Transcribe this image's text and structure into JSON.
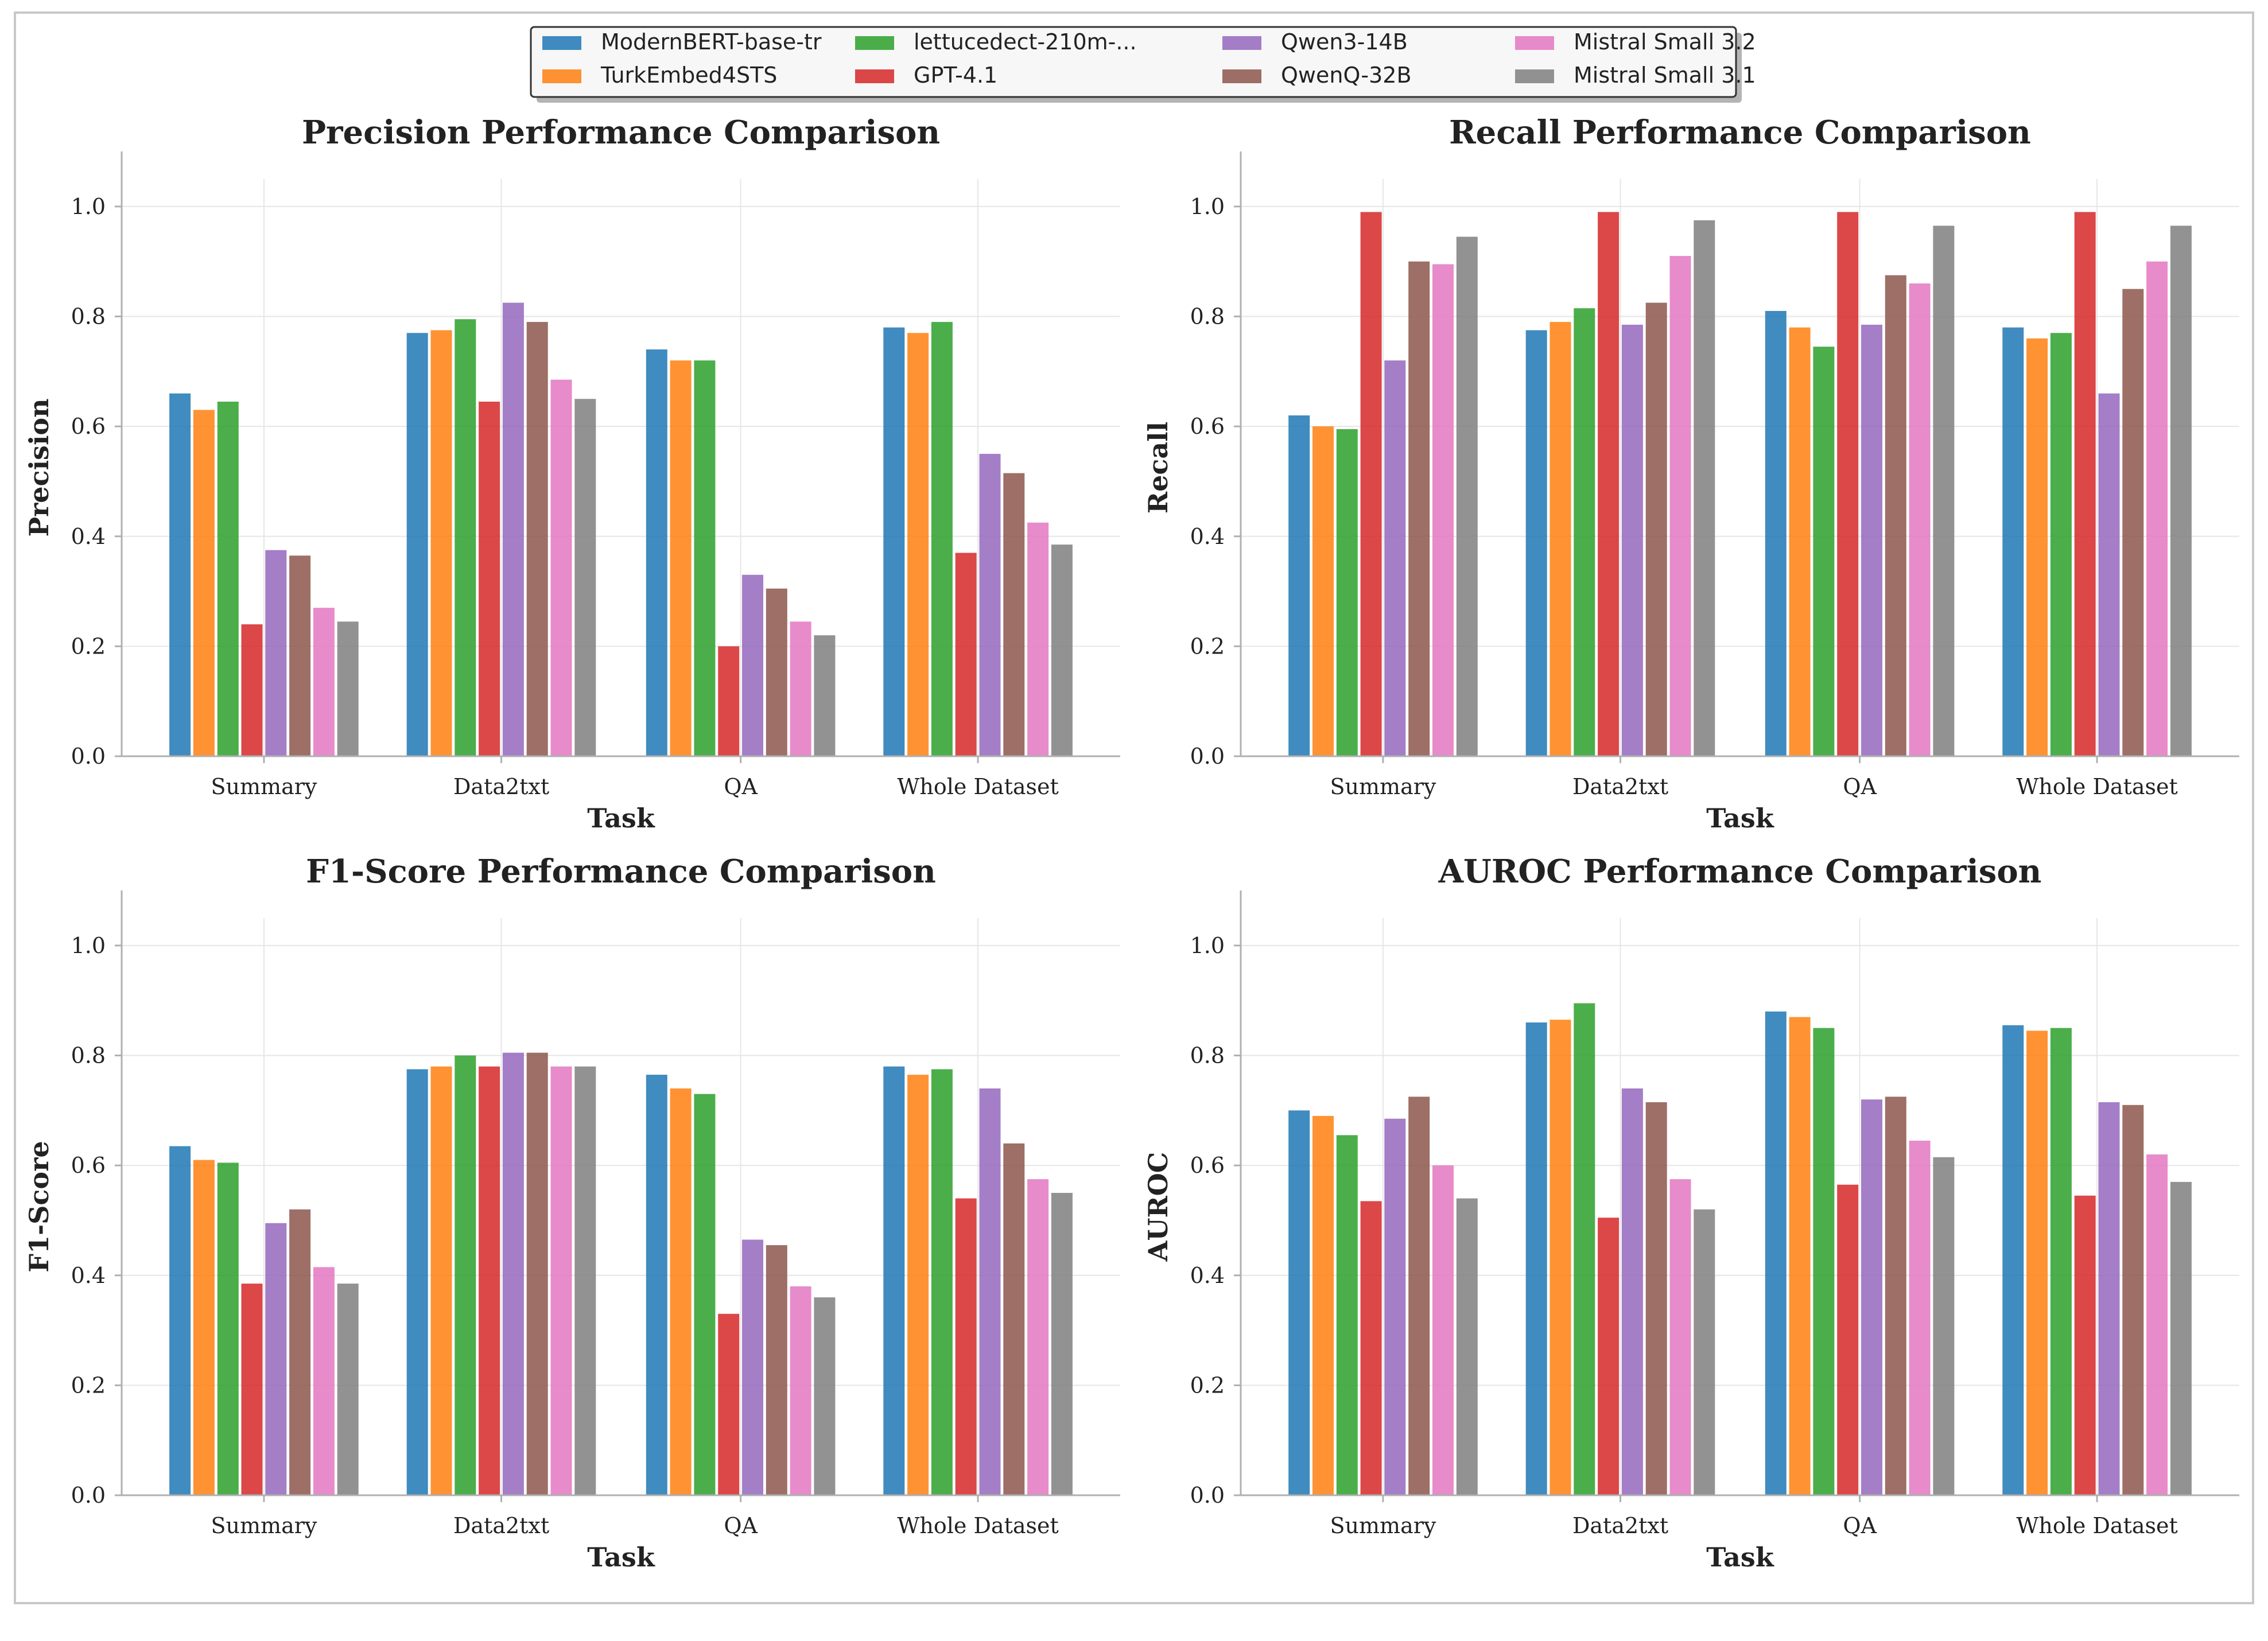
{
  "legend": {
    "entries": [
      {
        "label": "ModernBERT-base-tr",
        "color": "#1f77b4"
      },
      {
        "label": "TurkEmbed4STS",
        "color": "#ff7f0e"
      },
      {
        "label": "lettucedect-210m-...",
        "color": "#2ca02c"
      },
      {
        "label": "GPT-4.1",
        "color": "#d62728"
      },
      {
        "label": "Qwen3-14B",
        "color": "#9467bd"
      },
      {
        "label": "QwenQ-32B",
        "color": "#8c564b"
      },
      {
        "label": "Mistral Small 3.2",
        "color": "#e377c2"
      },
      {
        "label": "Mistral Small 3.1",
        "color": "#7f7f7f"
      }
    ]
  },
  "chart_data": [
    {
      "type": "bar",
      "title": "Precision Performance Comparison",
      "xlabel": "Task",
      "ylabel": "Precision",
      "ylim": [
        0,
        1.05
      ],
      "yticks": [
        "0.0",
        "0.2",
        "0.4",
        "0.6",
        "0.8",
        "1.0"
      ],
      "categories": [
        "Summary",
        "Data2txt",
        "QA",
        "Whole Dataset"
      ],
      "series": [
        {
          "name": "ModernBERT-base-tr",
          "values": [
            0.66,
            0.77,
            0.74,
            0.78
          ]
        },
        {
          "name": "TurkEmbed4STS",
          "values": [
            0.63,
            0.775,
            0.72,
            0.77
          ]
        },
        {
          "name": "lettucedect-210m-...",
          "values": [
            0.645,
            0.795,
            0.72,
            0.79
          ]
        },
        {
          "name": "GPT-4.1",
          "values": [
            0.24,
            0.645,
            0.2,
            0.37
          ]
        },
        {
          "name": "Qwen3-14B",
          "values": [
            0.375,
            0.825,
            0.33,
            0.55
          ]
        },
        {
          "name": "QwenQ-32B",
          "values": [
            0.365,
            0.79,
            0.305,
            0.515
          ]
        },
        {
          "name": "Mistral Small 3.2",
          "values": [
            0.27,
            0.685,
            0.245,
            0.425
          ]
        },
        {
          "name": "Mistral Small 3.1",
          "values": [
            0.245,
            0.65,
            0.22,
            0.385
          ]
        }
      ]
    },
    {
      "type": "bar",
      "title": "Recall Performance Comparison",
      "xlabel": "Task",
      "ylabel": "Recall",
      "ylim": [
        0,
        1.05
      ],
      "yticks": [
        "0.0",
        "0.2",
        "0.4",
        "0.6",
        "0.8",
        "1.0"
      ],
      "categories": [
        "Summary",
        "Data2txt",
        "QA",
        "Whole Dataset"
      ],
      "series": [
        {
          "name": "ModernBERT-base-tr",
          "values": [
            0.62,
            0.775,
            0.81,
            0.78
          ]
        },
        {
          "name": "TurkEmbed4STS",
          "values": [
            0.6,
            0.79,
            0.78,
            0.76
          ]
        },
        {
          "name": "lettucedect-210m-...",
          "values": [
            0.595,
            0.815,
            0.745,
            0.77
          ]
        },
        {
          "name": "GPT-4.1",
          "values": [
            0.99,
            0.99,
            0.99,
            0.99
          ]
        },
        {
          "name": "Qwen3-14B",
          "values": [
            0.72,
            0.785,
            0.785,
            0.66
          ]
        },
        {
          "name": "QwenQ-32B",
          "values": [
            0.9,
            0.825,
            0.875,
            0.85
          ]
        },
        {
          "name": "Mistral Small 3.2",
          "values": [
            0.895,
            0.91,
            0.86,
            0.9
          ]
        },
        {
          "name": "Mistral Small 3.1",
          "values": [
            0.945,
            0.975,
            0.965,
            0.965
          ]
        }
      ]
    },
    {
      "type": "bar",
      "title": "F1-Score Performance Comparison",
      "xlabel": "Task",
      "ylabel": "F1-Score",
      "ylim": [
        0,
        1.05
      ],
      "yticks": [
        "0.0",
        "0.2",
        "0.4",
        "0.6",
        "0.8",
        "1.0"
      ],
      "categories": [
        "Summary",
        "Data2txt",
        "QA",
        "Whole Dataset"
      ],
      "series": [
        {
          "name": "ModernBERT-base-tr",
          "values": [
            0.635,
            0.775,
            0.765,
            0.78
          ]
        },
        {
          "name": "TurkEmbed4STS",
          "values": [
            0.61,
            0.78,
            0.74,
            0.765
          ]
        },
        {
          "name": "lettucedect-210m-...",
          "values": [
            0.605,
            0.8,
            0.73,
            0.775
          ]
        },
        {
          "name": "GPT-4.1",
          "values": [
            0.385,
            0.78,
            0.33,
            0.54
          ]
        },
        {
          "name": "Qwen3-14B",
          "values": [
            0.495,
            0.805,
            0.465,
            0.74
          ]
        },
        {
          "name": "QwenQ-32B",
          "values": [
            0.52,
            0.805,
            0.455,
            0.64
          ]
        },
        {
          "name": "Mistral Small 3.2",
          "values": [
            0.415,
            0.78,
            0.38,
            0.575
          ]
        },
        {
          "name": "Mistral Small 3.1",
          "values": [
            0.385,
            0.78,
            0.36,
            0.55
          ]
        }
      ]
    },
    {
      "type": "bar",
      "title": "AUROC Performance Comparison",
      "xlabel": "Task",
      "ylabel": "AUROC",
      "ylim": [
        0,
        1.05
      ],
      "yticks": [
        "0.0",
        "0.2",
        "0.4",
        "0.6",
        "0.8",
        "1.0"
      ],
      "categories": [
        "Summary",
        "Data2txt",
        "QA",
        "Whole Dataset"
      ],
      "series": [
        {
          "name": "ModernBERT-base-tr",
          "values": [
            0.7,
            0.86,
            0.88,
            0.855
          ]
        },
        {
          "name": "TurkEmbed4STS",
          "values": [
            0.69,
            0.865,
            0.87,
            0.845
          ]
        },
        {
          "name": "lettucedect-210m-...",
          "values": [
            0.655,
            0.895,
            0.85,
            0.85
          ]
        },
        {
          "name": "GPT-4.1",
          "values": [
            0.535,
            0.505,
            0.565,
            0.545
          ]
        },
        {
          "name": "Qwen3-14B",
          "values": [
            0.685,
            0.74,
            0.72,
            0.715
          ]
        },
        {
          "name": "QwenQ-32B",
          "values": [
            0.725,
            0.715,
            0.725,
            0.71
          ]
        },
        {
          "name": "Mistral Small 3.2",
          "values": [
            0.6,
            0.575,
            0.645,
            0.62
          ]
        },
        {
          "name": "Mistral Small 3.1",
          "values": [
            0.54,
            0.52,
            0.615,
            0.57
          ]
        }
      ]
    }
  ]
}
